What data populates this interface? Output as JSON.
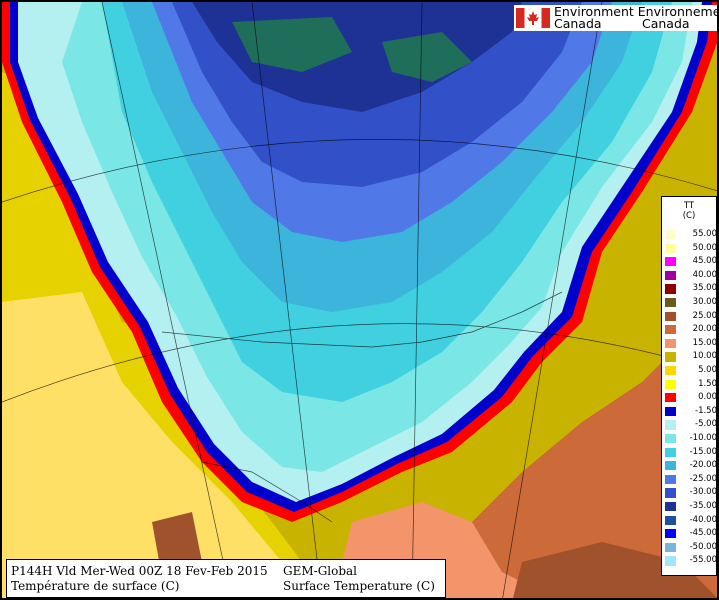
{
  "logo": {
    "line1": "Environment Environnement",
    "line2a": "Canada",
    "line2b": "Canada",
    "icon": "canada-flag-icon",
    "flag_red": "#d52b1e"
  },
  "legend": {
    "variable": "TT",
    "unit": "(C)",
    "items": [
      {
        "label": "55.00",
        "color": "#ffffc8"
      },
      {
        "label": "50.00",
        "color": "#ffff9a"
      },
      {
        "label": "45.00",
        "color": "#ff00ff"
      },
      {
        "label": "40.00",
        "color": "#a000a0"
      },
      {
        "label": "35.00",
        "color": "#8b0000"
      },
      {
        "label": "30.00",
        "color": "#6b5a1e"
      },
      {
        "label": "25.00",
        "color": "#a0522d"
      },
      {
        "label": "20.00",
        "color": "#cd6a3a"
      },
      {
        "label": "15.00",
        "color": "#f4946a"
      },
      {
        "label": "10.00",
        "color": "#c8b400"
      },
      {
        "label": "5.00",
        "color": "#ffd700"
      },
      {
        "label": "1.50",
        "color": "#ffff00"
      },
      {
        "label": "0.00",
        "color": "#ff0000"
      },
      {
        "label": "-1.50",
        "color": "#0000cd"
      },
      {
        "label": "-5.00",
        "color": "#b4f0f0"
      },
      {
        "label": "-10.00",
        "color": "#7ae6e6"
      },
      {
        "label": "-15.00",
        "color": "#40d0e0"
      },
      {
        "label": "-20.00",
        "color": "#3cb4dc"
      },
      {
        "label": "-25.00",
        "color": "#5078e6"
      },
      {
        "label": "-30.00",
        "color": "#3250c8"
      },
      {
        "label": "-35.00",
        "color": "#1e3296"
      },
      {
        "label": "-40.00",
        "color": "#1e50a0"
      },
      {
        "label": "-45.00",
        "color": "#0000ff"
      },
      {
        "label": "-50.00",
        "color": "#78b4dc"
      },
      {
        "label": "-55.00",
        "color": "#a0e6ff"
      }
    ]
  },
  "caption": {
    "line1_left": "P144H Vld Mer-Wed 00Z 18 Fev-Feb 2015",
    "line1_right": "GEM-Global",
    "line2_left": "Température de surface (C)",
    "line2_right": "Surface Temperature (C)"
  }
}
